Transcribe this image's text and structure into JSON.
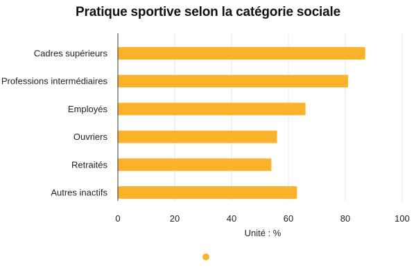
{
  "chart_data": {
    "type": "bar",
    "orientation": "horizontal",
    "title": "Pratique sportive selon la catégorie sociale",
    "xlabel": "Unité : %",
    "ylabel": "",
    "categories": [
      "Cadres supérieurs",
      "Professions intermédiaires",
      "Employés",
      "Ouvriers",
      "Retraités",
      "Autres inactifs"
    ],
    "series": [
      {
        "name": "",
        "color": "#FBB22B",
        "values": [
          87,
          81,
          66,
          56,
          54,
          63
        ]
      }
    ],
    "xlim": [
      0,
      100
    ],
    "xticks": [
      0,
      20,
      40,
      60,
      80,
      100
    ],
    "grid": true,
    "legend": "bottom-center"
  }
}
